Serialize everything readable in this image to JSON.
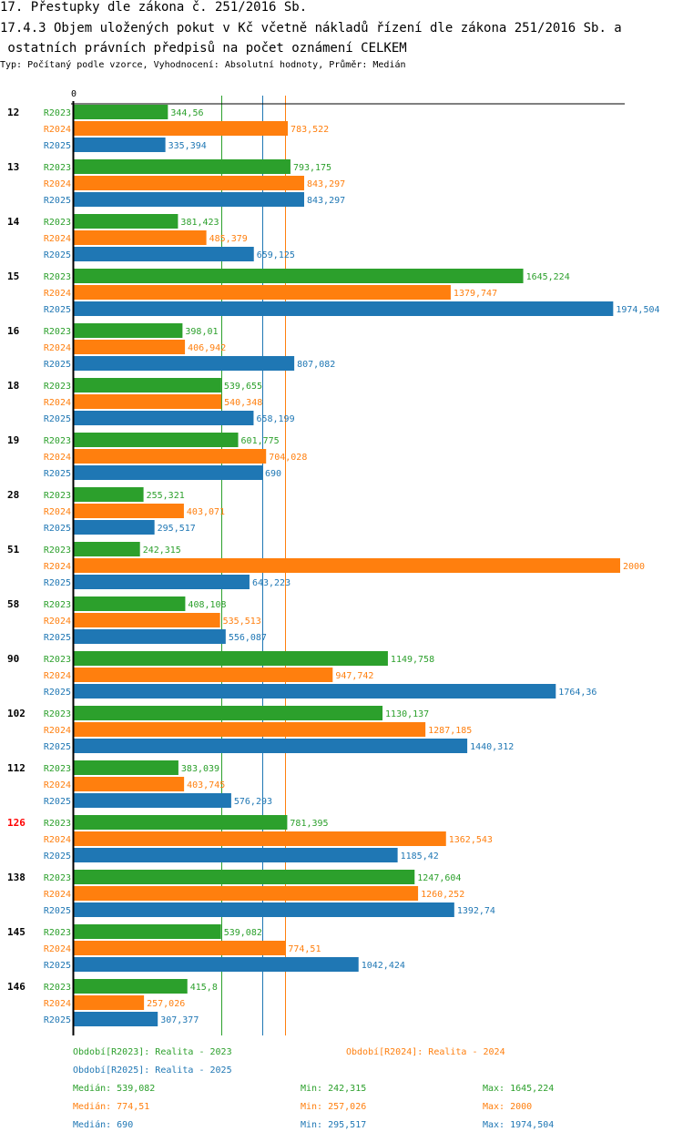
{
  "header": {
    "title": "17. Přestupky dle zákona č. 251/2016 Sb.",
    "subtitle_line1": "17.4.3 Objem uložených pokut v Kč včetně nákladů řízení dle zákona 251/2016 Sb. a",
    "subtitle_line2": " ostatních právních předpisů na počet oznámení CELKEM",
    "type_line": "Typ: Počítaný podle vzorce, Vyhodnocení: Absolutní hodnoty, Průměr: Medián"
  },
  "colors": {
    "R2023": "#2ca02c",
    "R2024": "#ff7f0e",
    "R2025": "#1f77b4",
    "highlight": "#ff0000"
  },
  "chart_data": {
    "type": "bar",
    "orientation": "horizontal",
    "title": "17.4.3 Objem uložených pokut v Kč včetně nákladů řízení dle zákona 251/2016 Sb. a ostatních právních předpisů na počet oznámení CELKEM",
    "xlim": [
      0,
      2000
    ],
    "x_tick_labels": [
      "0"
    ],
    "grid": false,
    "categories": [
      "12",
      "13",
      "14",
      "15",
      "16",
      "18",
      "19",
      "28",
      "51",
      "58",
      "90",
      "102",
      "112",
      "126",
      "138",
      "145",
      "146"
    ],
    "highlighted_category": "126",
    "series": [
      {
        "name": "R2023",
        "values": [
          344.56,
          793.175,
          381.423,
          1645.224,
          398.01,
          539.655,
          601.775,
          255.321,
          242.315,
          408.108,
          1149.758,
          1130.137,
          383.039,
          781.395,
          1247.604,
          539.082,
          415.8
        ],
        "labels": [
          "344,56",
          "793,175",
          "381,423",
          "1645,224",
          "398,01",
          "539,655",
          "601,775",
          "255,321",
          "242,315",
          "408,108",
          "1149,758",
          "1130,137",
          "383,039",
          "781,395",
          "1247,604",
          "539,082",
          "415,8"
        ]
      },
      {
        "name": "R2024",
        "values": [
          783.522,
          843.297,
          485.379,
          1379.747,
          406.942,
          540.348,
          704.028,
          403.071,
          2000,
          535.513,
          947.742,
          1287.185,
          403.745,
          1362.543,
          1260.252,
          774.51,
          257.026
        ],
        "labels": [
          "783,522",
          "843,297",
          "485,379",
          "1379,747",
          "406,942",
          "540,348",
          "704,028",
          "403,071",
          "2000",
          "535,513",
          "947,742",
          "1287,185",
          "403,745",
          "1362,543",
          "1260,252",
          "774,51",
          "257,026"
        ]
      },
      {
        "name": "R2025",
        "values": [
          335.394,
          843.297,
          659.125,
          1974.504,
          807.082,
          658.199,
          690,
          295.517,
          643.223,
          556.087,
          1764.36,
          1440.312,
          576.293,
          1185.42,
          1392.74,
          1042.424,
          307.377
        ],
        "labels": [
          "335,394",
          "843,297",
          "659,125",
          "1974,504",
          "807,082",
          "658,199",
          "690",
          "295,517",
          "643,223",
          "556,087",
          "1764,36",
          "1440,312",
          "576,293",
          "1185,42",
          "1392,74",
          "1042,424",
          "307,377"
        ]
      }
    ],
    "median_lines": [
      {
        "series": "R2023",
        "value": 539.082
      },
      {
        "series": "R2024",
        "value": 774.51
      },
      {
        "series": "R2025",
        "value": 690
      }
    ]
  },
  "legend": {
    "periods": [
      {
        "series": "R2023",
        "text": "Období[R2023]: Realita - 2023"
      },
      {
        "series": "R2024",
        "text": "Období[R2024]: Realita - 2024"
      },
      {
        "series": "R2025",
        "text": "Období[R2025]: Realita - 2025"
      }
    ],
    "stats": [
      {
        "series": "R2023",
        "median": "Medián: 539,082",
        "min": "Min: 242,315",
        "max": "Max: 1645,224"
      },
      {
        "series": "R2024",
        "median": "Medián: 774,51",
        "min": "Min: 257,026",
        "max": "Max: 2000"
      },
      {
        "series": "R2025",
        "median": "Medián: 690",
        "min": "Min: 295,517",
        "max": "Max: 1974,504"
      }
    ]
  }
}
